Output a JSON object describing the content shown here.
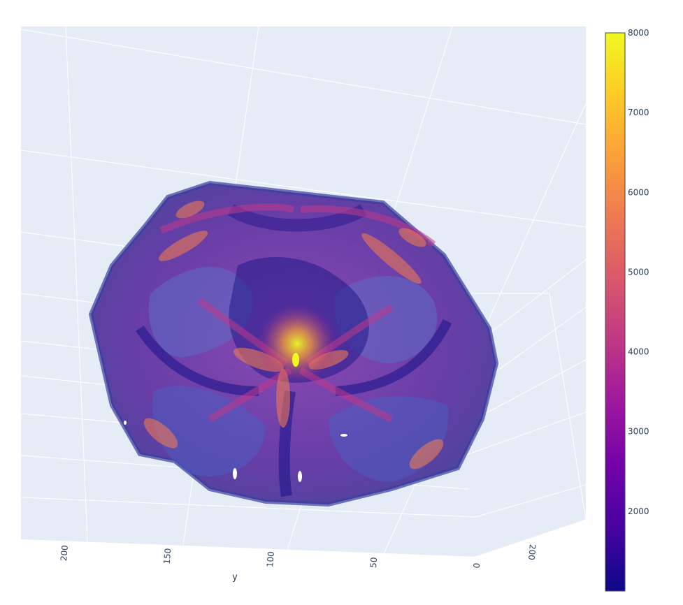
{
  "chart_data": {
    "type": "volume",
    "title": "",
    "colorscale_name": "Plasma",
    "colorscale": [
      "#0d0887",
      "#46039f",
      "#7201a8",
      "#9c179e",
      "#bd3786",
      "#d8576b",
      "#ed7953",
      "#fb9f3a",
      "#fdca26",
      "#f0f921"
    ],
    "value_range": [
      1000,
      8000
    ],
    "colorbar": {
      "ticks": [
        2000,
        3000,
        4000,
        5000,
        6000,
        7000,
        8000
      ],
      "tick_labels": [
        "2000",
        "3000",
        "4000",
        "5000",
        "6000",
        "7000",
        "8000"
      ]
    },
    "scene": {
      "background": "#e5ecf6",
      "grid_color": "#ffffff",
      "y_axis": {
        "title": "y",
        "ticks": [
          200,
          150,
          100,
          50,
          0
        ],
        "tick_labels": [
          "200",
          "150",
          "100",
          "50",
          "0"
        ]
      },
      "secondary_axis": {
        "ticks": [
          200,
          0
        ],
        "tick_labels": [
          "200",
          "0"
        ]
      }
    }
  }
}
